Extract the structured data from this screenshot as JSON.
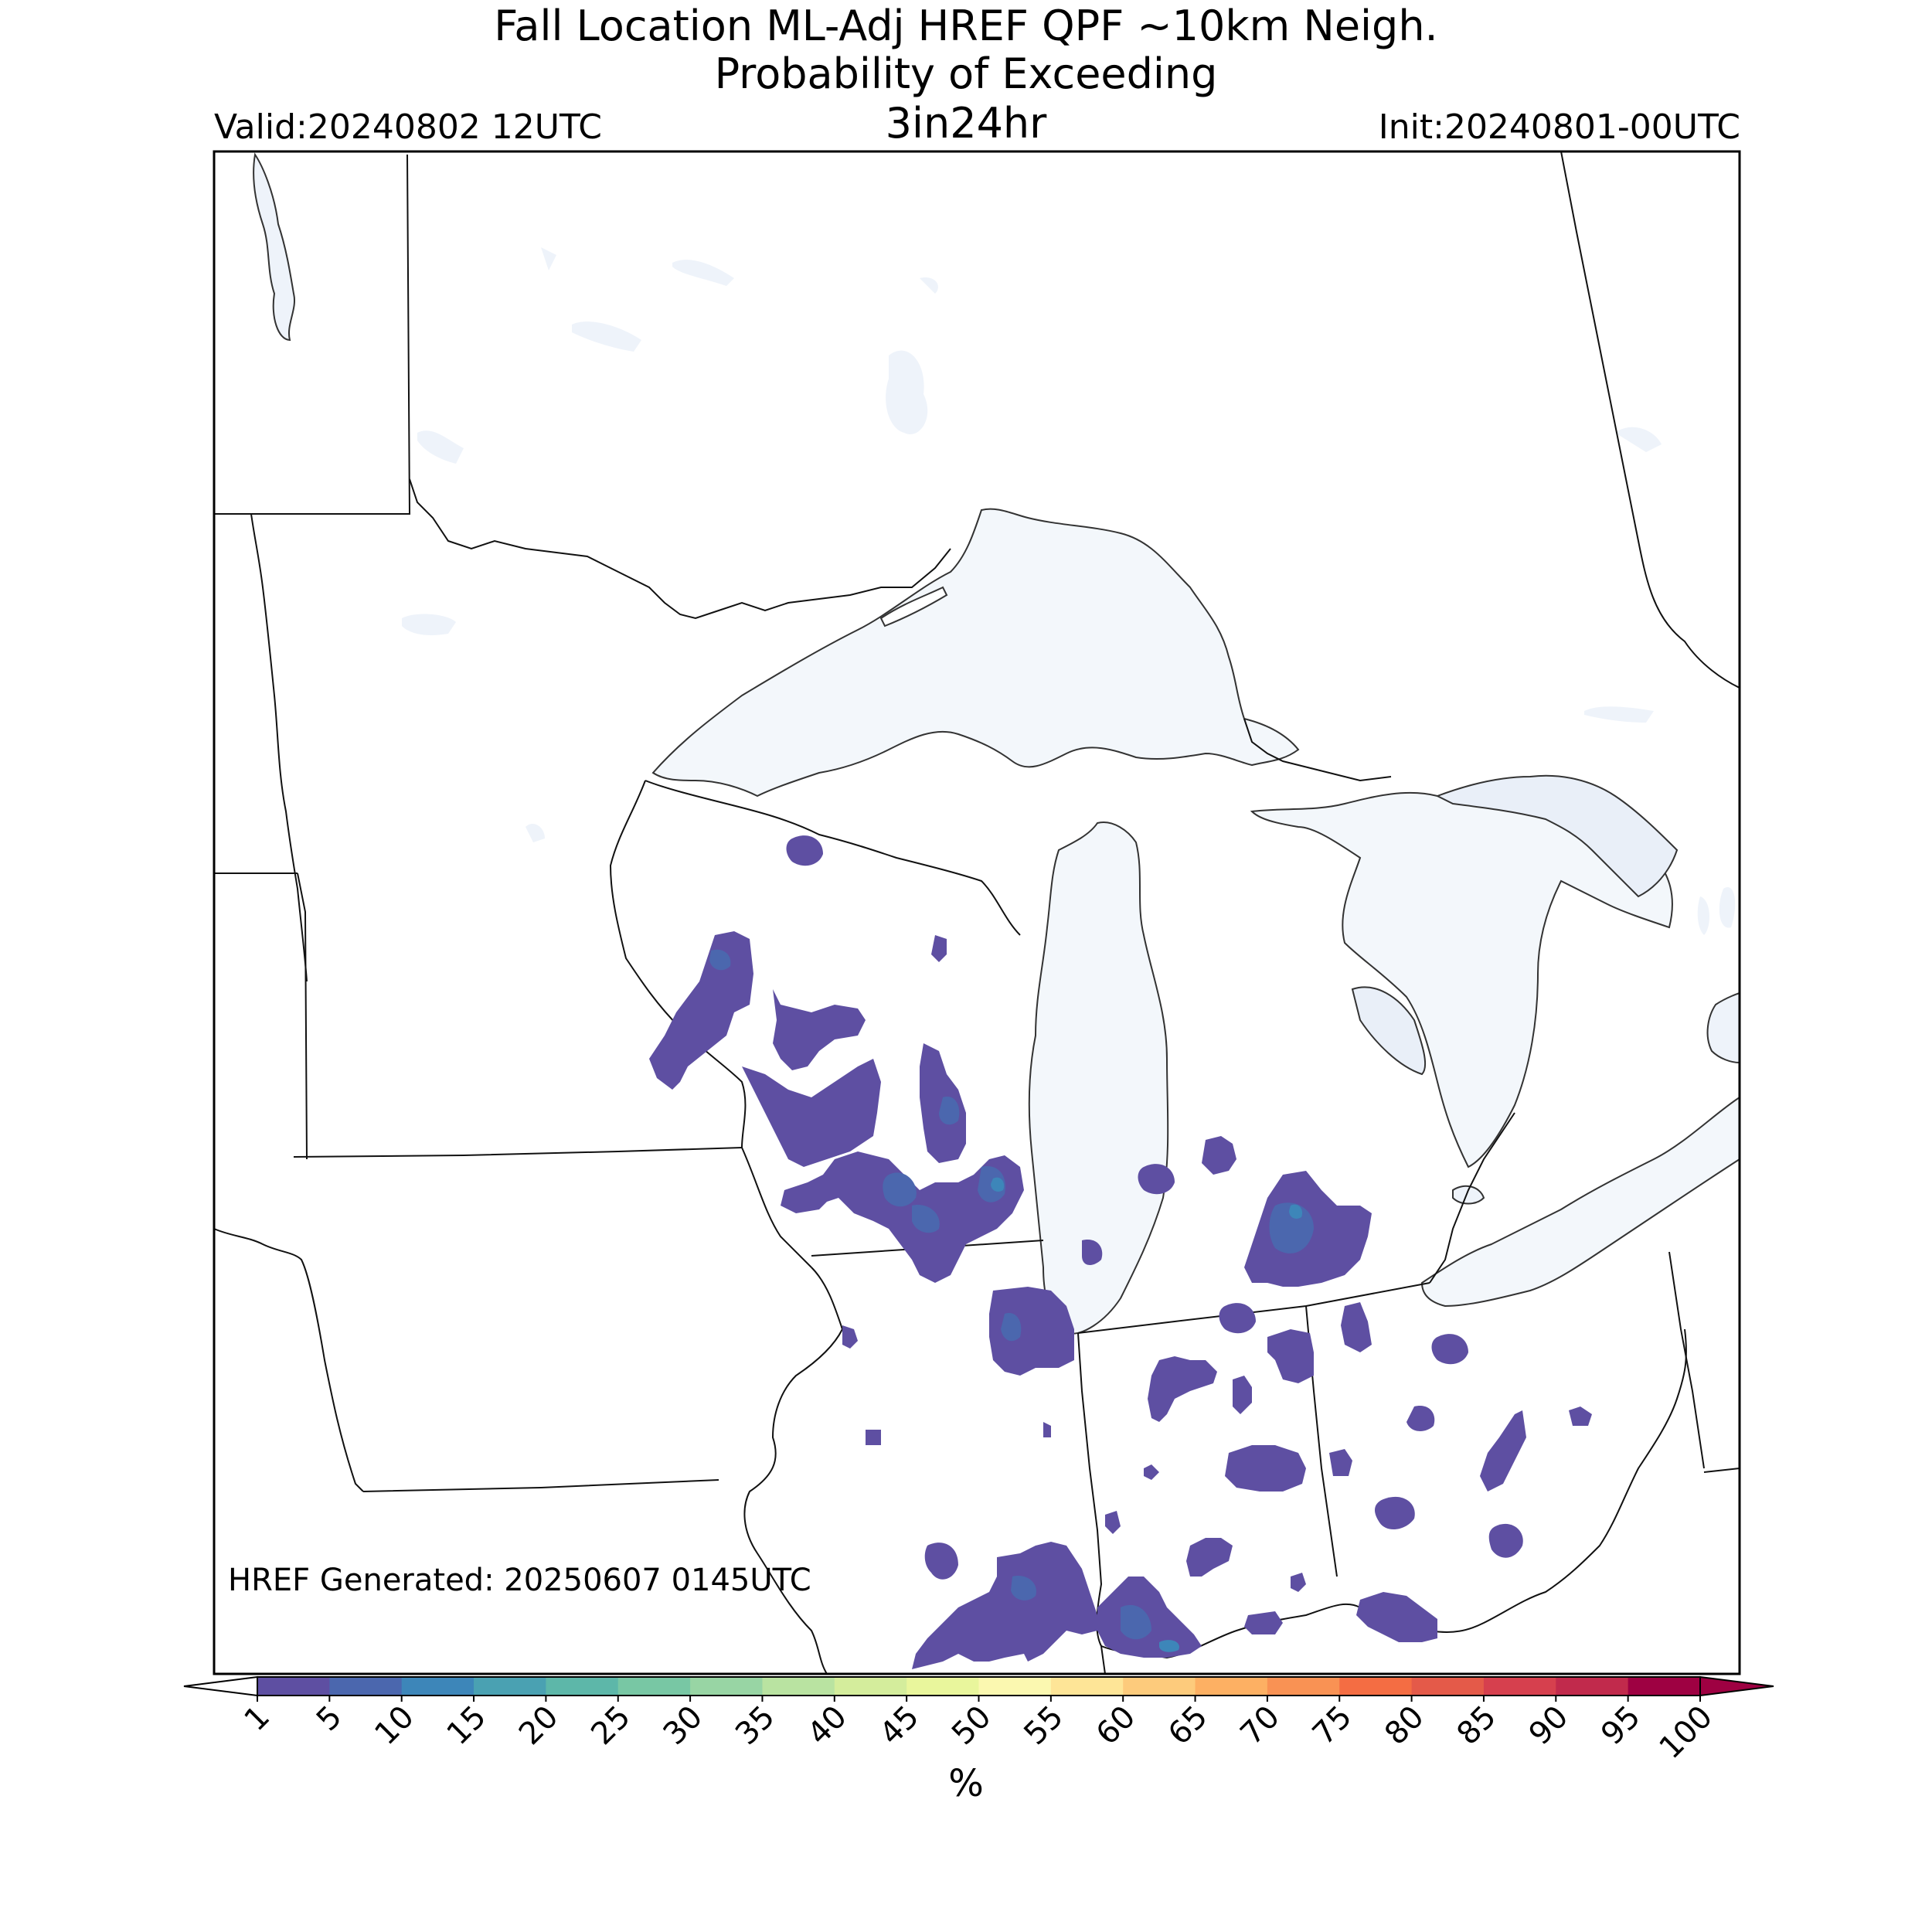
{
  "title": {
    "line1": "Fall Location ML-Adj HREF QPF ~10km Neigh.",
    "line2": "Probability of Exceeding",
    "threshold": "3in24hr"
  },
  "valid": "Valid:20240802 12UTC",
  "init": "Init:20240801-00UTC",
  "generated": "HREF Generated: 20250607 0145UTC",
  "colorbar": {
    "unit": "%",
    "ticks": [
      "1",
      "5",
      "10",
      "15",
      "20",
      "25",
      "30",
      "35",
      "40",
      "45",
      "50",
      "55",
      "60",
      "65",
      "70",
      "75",
      "80",
      "85",
      "90",
      "95",
      "100"
    ],
    "colors": [
      "#5e4fa2",
      "#4b67ae",
      "#3d86b9",
      "#4aa1b2",
      "#5db7a9",
      "#78c7a4",
      "#98d5a4",
      "#b9e3a1",
      "#d4ed9c",
      "#e9f69c",
      "#fbf8b0",
      "#fee597",
      "#fdcb7c",
      "#fdb063",
      "#f99254",
      "#f46d43",
      "#e45a49",
      "#d6404e",
      "#c12a4c",
      "#9e0142"
    ]
  },
  "map_colors": {
    "water": "#eef3fa",
    "lake_superior": "#f3f7fb",
    "border": "#000000",
    "prob_low": "#5e4fa2",
    "prob_mid": "#4b67ae",
    "prob_high": "#3d86b9"
  }
}
